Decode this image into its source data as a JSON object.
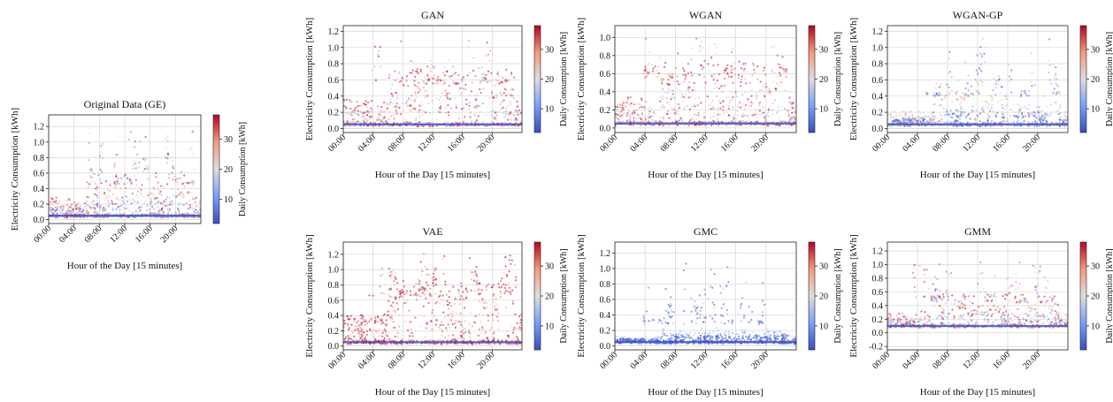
{
  "colors": {
    "low": "#3b4cc0",
    "mid": "#dddddd",
    "high": "#b40426",
    "grid": "#d0d0d0",
    "frame": "#222222"
  },
  "chart_data": [
    {
      "id": "original",
      "type": "scatter",
      "title": "Original Data (GE)",
      "xlabel": "Hour of the Day [15 minutes]",
      "ylabel": "Electricity Consumption [kWh]",
      "colorbar_label": "Daily Consumption [kWh]",
      "x_ticks": [
        "00:00",
        "04:00",
        "08:00",
        "12:00",
        "16:00",
        "20:00"
      ],
      "y_ticks": [
        0.0,
        0.2,
        0.4,
        0.6,
        0.8,
        1.0,
        1.2
      ],
      "ylim": [
        -0.05,
        1.35
      ],
      "colorbar_ticks": [
        10,
        20,
        30
      ],
      "clim": [
        2,
        38
      ],
      "grid": true,
      "profile": {
        "base": 0.05,
        "peak": 0.45,
        "max": 1.25,
        "warm": 0.55,
        "spread": 0.5
      }
    },
    {
      "id": "gan",
      "type": "scatter",
      "title": "GAN",
      "xlabel": "Hour of the Day [15 minutes]",
      "ylabel": "Electricity Consumption [kWh]",
      "colorbar_label": "Daily Consumption [kWh]",
      "x_ticks": [
        "00:00",
        "04:00",
        "08:00",
        "12:00",
        "16:00",
        "20:00"
      ],
      "y_ticks": [
        0.0,
        0.2,
        0.4,
        0.6,
        0.8,
        1.0,
        1.2
      ],
      "ylim": [
        -0.05,
        1.27
      ],
      "colorbar_ticks": [
        10,
        20,
        30
      ],
      "clim": [
        2,
        38
      ],
      "grid": true,
      "profile": {
        "base": 0.05,
        "peak": 0.55,
        "max": 1.22,
        "warm": 0.7,
        "spread": 0.45
      }
    },
    {
      "id": "wgan",
      "type": "scatter",
      "title": "WGAN",
      "xlabel": "Hour of the Day [15 minutes]",
      "ylabel": "Electricity Consumption [kWh]",
      "colorbar_label": "Daily Consumption [kWh]",
      "x_ticks": [
        "00:00",
        "04:00",
        "08:00",
        "12:00",
        "16:00",
        "20:00"
      ],
      "y_ticks": [
        0.0,
        0.2,
        0.4,
        0.6,
        0.8,
        1.0
      ],
      "ylim": [
        -0.05,
        1.13
      ],
      "colorbar_ticks": [
        10,
        20,
        30
      ],
      "clim": [
        2,
        38
      ],
      "grid": true,
      "profile": {
        "base": 0.05,
        "peak": 0.55,
        "max": 1.1,
        "warm": 0.7,
        "spread": 0.45
      }
    },
    {
      "id": "wgangp",
      "type": "scatter",
      "title": "WGAN-GP",
      "xlabel": "Hour of the Day [15 minutes]",
      "ylabel": "Electricity Consumption [kWh]",
      "colorbar_label": "Daily Consumption [kWh]",
      "x_ticks": [
        "00:00",
        "04:00",
        "08:00",
        "12:00",
        "16:00",
        "20:00"
      ],
      "y_ticks": [
        0.0,
        0.2,
        0.4,
        0.6,
        0.8,
        1.0,
        1.2
      ],
      "ylim": [
        -0.05,
        1.27
      ],
      "colorbar_ticks": [
        10,
        20,
        30
      ],
      "clim": [
        2,
        38
      ],
      "grid": true,
      "profile": {
        "base": 0.05,
        "peak": 0.4,
        "max": 1.2,
        "warm": 0.35,
        "spread": 0.5
      }
    },
    {
      "id": "vae",
      "type": "scatter",
      "title": "VAE",
      "xlabel": "Hour of the Day [15 minutes]",
      "ylabel": "Electricity Consumption [kWh]",
      "colorbar_label": "Daily Consumption [kWh]",
      "x_ticks": [
        "00:00",
        "04:00",
        "08:00",
        "12:00",
        "16:00",
        "20:00"
      ],
      "y_ticks": [
        0.0,
        0.2,
        0.4,
        0.6,
        0.8,
        1.0,
        1.2
      ],
      "ylim": [
        -0.05,
        1.36
      ],
      "colorbar_ticks": [
        10,
        20,
        30
      ],
      "clim": [
        2,
        38
      ],
      "grid": true,
      "profile": {
        "base": 0.05,
        "peak": 0.65,
        "max": 1.3,
        "warm": 0.92,
        "spread": 0.35
      }
    },
    {
      "id": "gmc",
      "type": "scatter",
      "title": "GMC",
      "xlabel": "Hour of the Day [15 minutes]",
      "ylabel": "Electricity Consumption [kWh]",
      "colorbar_label": "Daily Consumption [kWh]",
      "x_ticks": [
        "00:00",
        "04:00",
        "08:00",
        "12:00",
        "16:00",
        "20:00"
      ],
      "y_ticks": [
        0.0,
        0.2,
        0.4,
        0.6,
        0.8,
        1.0,
        1.2
      ],
      "ylim": [
        -0.05,
        1.34
      ],
      "colorbar_ticks": [
        10,
        20,
        30
      ],
      "clim": [
        2,
        38
      ],
      "grid": true,
      "profile": {
        "base": 0.05,
        "peak": 0.28,
        "max": 1.1,
        "warm": 0.06,
        "spread": 0.4
      }
    },
    {
      "id": "gmm",
      "type": "scatter",
      "title": "GMM",
      "xlabel": "Hour of the Day [15 minutes]",
      "ylabel": "Electricity Consumption [kWh]",
      "colorbar_label": "Daily Consumption [kWh]",
      "x_ticks": [
        "00:00",
        "04:00",
        "08:00",
        "12:00",
        "16:00",
        "20:00"
      ],
      "y_ticks": [
        -0.2,
        0.0,
        0.2,
        0.4,
        0.6,
        0.8,
        1.0,
        1.2
      ],
      "ylim": [
        -0.25,
        1.33
      ],
      "colorbar_ticks": [
        10,
        20,
        30
      ],
      "clim": [
        2,
        38
      ],
      "grid": true,
      "profile": {
        "base": 0.1,
        "peak": 0.45,
        "max": 1.1,
        "warm": 0.6,
        "spread": 0.5
      }
    }
  ]
}
